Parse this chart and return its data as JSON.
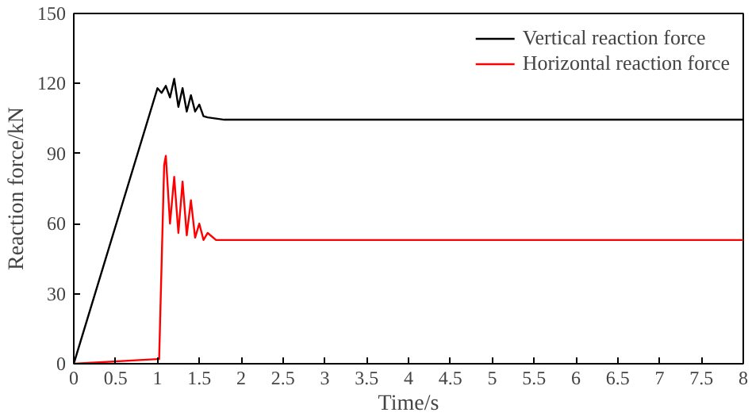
{
  "chart_data": {
    "type": "line",
    "xlabel": "Time/s",
    "ylabel": "Reaction force/kN",
    "xlim": [
      0,
      8
    ],
    "ylim": [
      0,
      150
    ],
    "xticks": [
      0,
      0.5,
      1,
      1.5,
      2,
      2.5,
      3,
      3.5,
      4,
      4.5,
      5,
      5.5,
      6,
      6.5,
      7,
      7.5,
      8
    ],
    "yticks": [
      0,
      30,
      60,
      90,
      120,
      150
    ],
    "grid": false,
    "legend": "top right",
    "line_style": "solid",
    "marker": "none",
    "series": [
      {
        "name": "Vertical reaction force",
        "color": "#000000",
        "x": [
          0,
          1.0,
          1.05,
          1.1,
          1.15,
          1.2,
          1.25,
          1.3,
          1.35,
          1.4,
          1.45,
          1.5,
          1.55,
          1.6,
          1.8,
          2.5,
          3,
          4,
          5,
          6,
          7,
          8
        ],
        "values": [
          0,
          118,
          116,
          119,
          114,
          122,
          110,
          118,
          108,
          115,
          108,
          111,
          106,
          105.5,
          104.5,
          104.5,
          104.5,
          104.5,
          104.5,
          104.5,
          104.5,
          104.5
        ]
      },
      {
        "name": "Horizontal reaction force",
        "color": "#ff0000",
        "x": [
          0,
          1.0,
          1.02,
          1.08,
          1.1,
          1.15,
          1.2,
          1.25,
          1.3,
          1.35,
          1.4,
          1.45,
          1.5,
          1.55,
          1.6,
          1.7,
          2,
          3,
          4,
          5,
          6,
          7,
          8
        ],
        "values": [
          0,
          2,
          2,
          85,
          89,
          60,
          80,
          56,
          78,
          55,
          70,
          54,
          60,
          53,
          56,
          53,
          53,
          53,
          53,
          53,
          53,
          53,
          53
        ]
      }
    ]
  }
}
